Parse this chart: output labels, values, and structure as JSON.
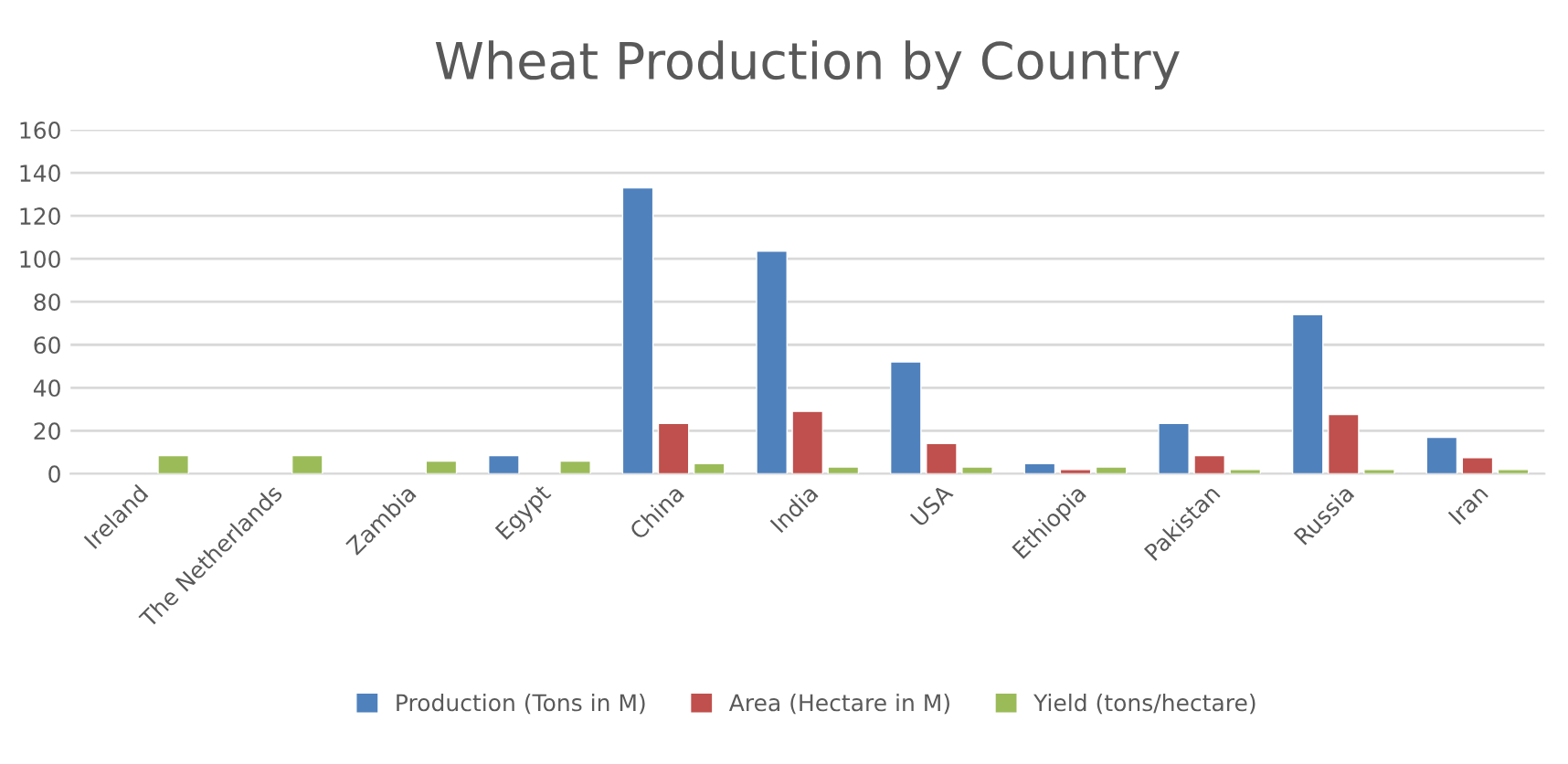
{
  "chart_data": {
    "type": "bar",
    "title": "Wheat Production by Country",
    "categories": [
      "Ireland",
      "The Netherlands",
      "Zambia",
      "Egypt",
      "China",
      "India",
      "USA",
      "Ethiopia",
      "Pakistan",
      "Russia",
      "Iran"
    ],
    "series": [
      {
        "name": "Production (Tons in M)",
        "color": "#4f81bd",
        "values": [
          null,
          null,
          null,
          8.4,
          133,
          103.6,
          52,
          4.7,
          23.4,
          74,
          16.9
        ]
      },
      {
        "name": "Area (Hectare in M)",
        "color": "#c0504d",
        "values": [
          null,
          null,
          null,
          null,
          23.4,
          29,
          14,
          1.9,
          8.4,
          27.5,
          7.5
        ]
      },
      {
        "name": "Yield (tons/hectare)",
        "color": "#9bbb59",
        "values": [
          8.4,
          8.4,
          5.9,
          5.9,
          4.7,
          3.1,
          3.1,
          3.1,
          1.9,
          1.9,
          1.9
        ]
      }
    ],
    "ylim": [
      0,
      160
    ],
    "yticks": [
      0,
      20,
      40,
      60,
      80,
      100,
      120,
      140,
      160
    ],
    "grid": "y",
    "legend": "bottom"
  }
}
